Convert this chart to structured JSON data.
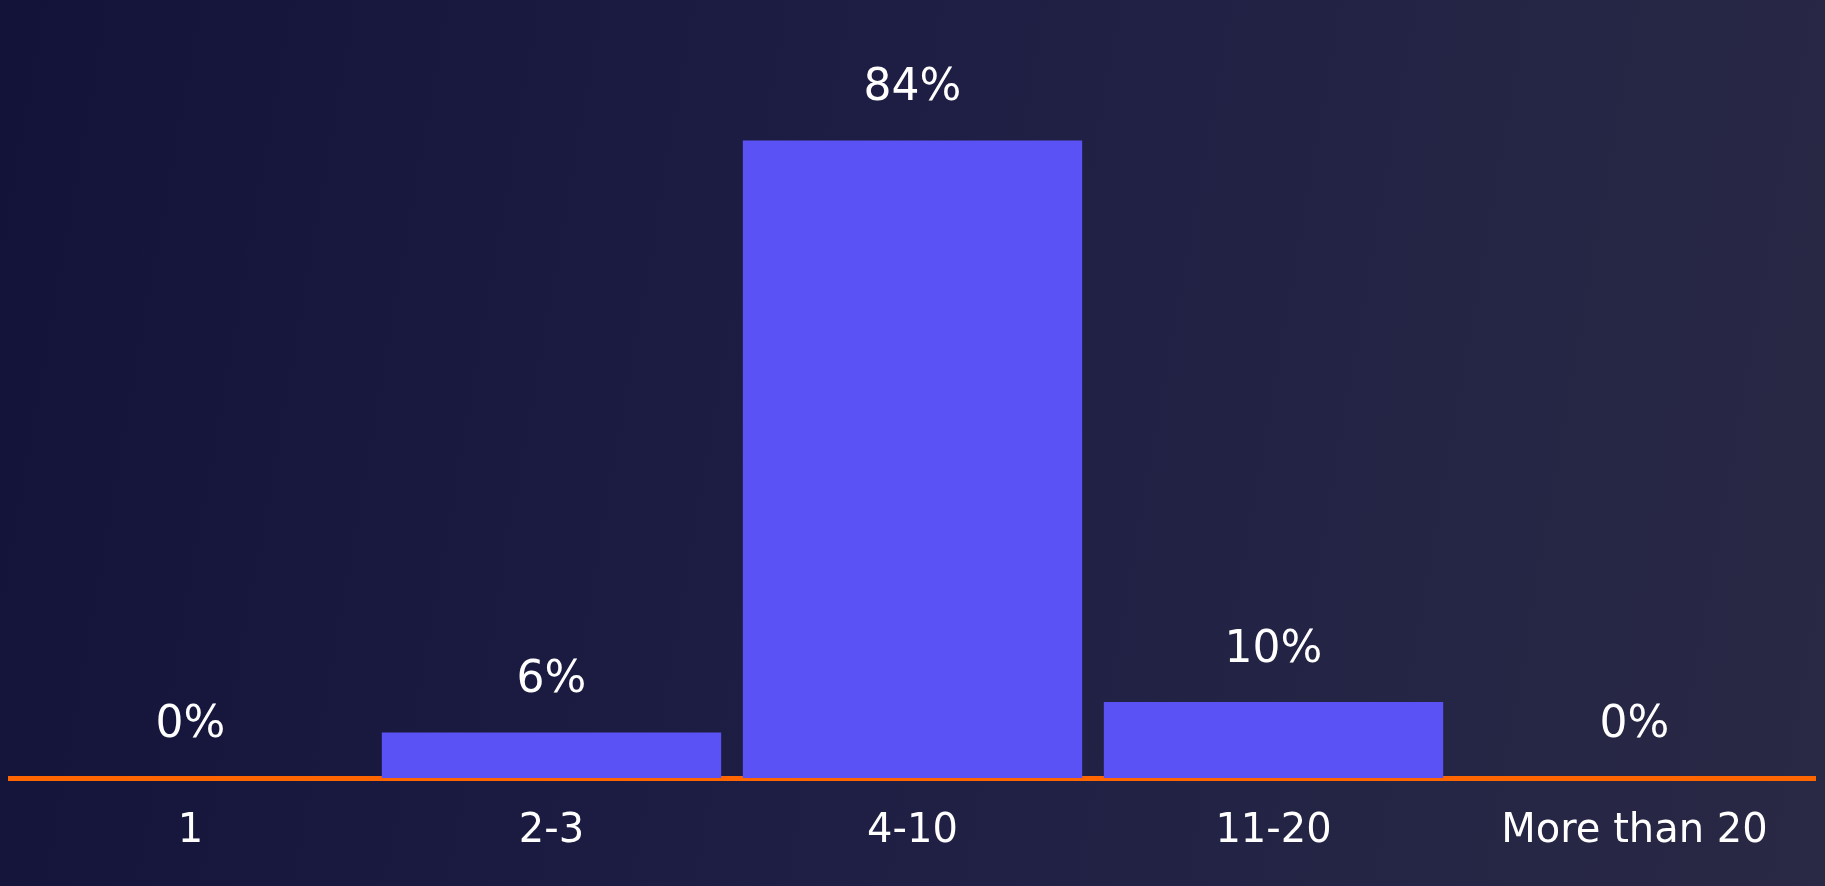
{
  "chart_data": {
    "type": "bar",
    "categories": [
      "1",
      "2-3",
      "4-10",
      "11-20",
      "More than 20"
    ],
    "values": [
      0,
      6,
      84,
      10,
      0
    ],
    "value_labels": [
      "0%",
      "6%",
      "84%",
      "10%",
      "0%"
    ],
    "color": "#5a52f5",
    "grid": false,
    "legend": false,
    "tick_labels": "x"
  }
}
